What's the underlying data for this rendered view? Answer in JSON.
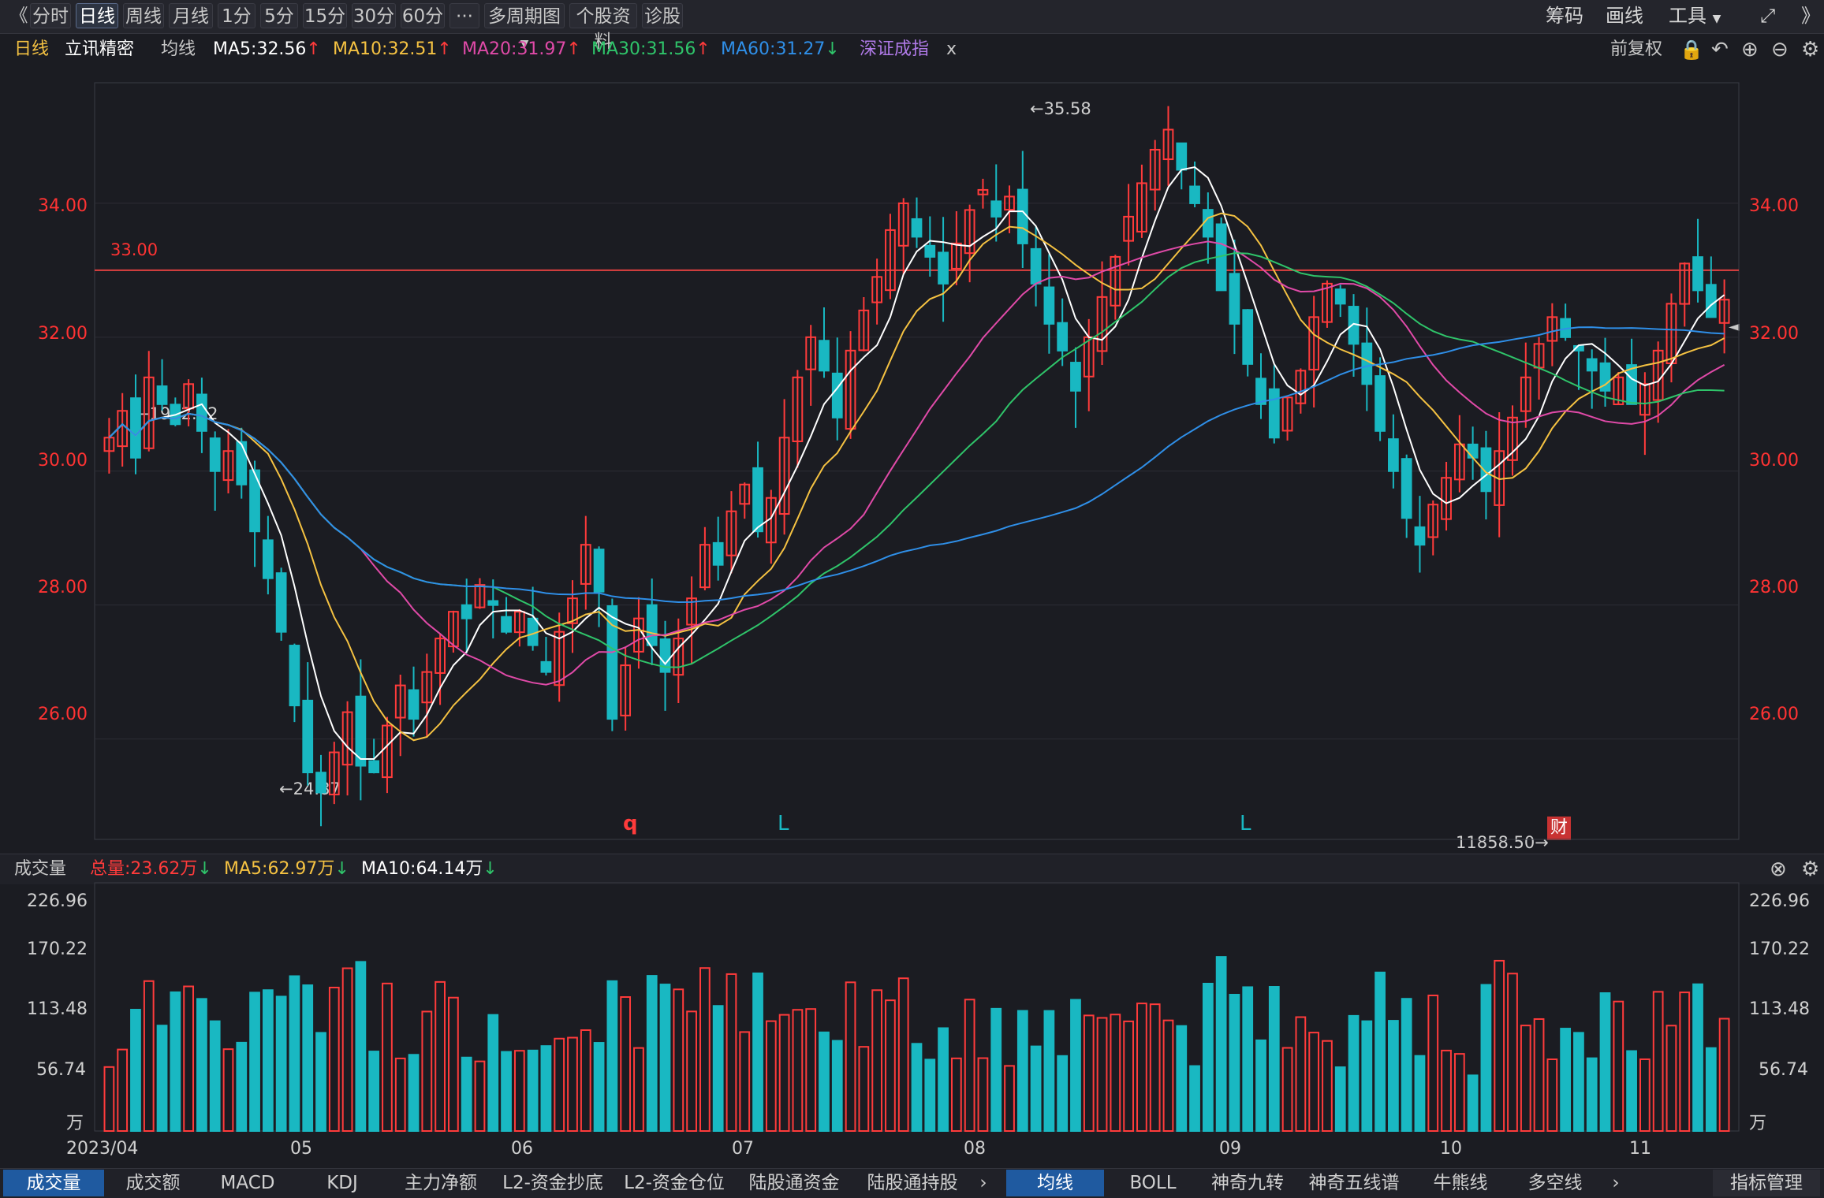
{
  "toolbar": {
    "back": "《",
    "periods": [
      "分时",
      "日线",
      "周线",
      "月线",
      "1分",
      "5分",
      "15分",
      "30分",
      "60分",
      "···",
      "多周期图",
      "个股资料",
      "诊股"
    ],
    "active_period": "日线",
    "right": [
      "筹码",
      "画线",
      "工具"
    ]
  },
  "info_row": {
    "period": "日线",
    "stock": "立讯精密",
    "avg_label": "均线",
    "ma5": "MA5:32.56",
    "ma10": "MA10:32.51",
    "ma20": "MA20:31.97",
    "ma30": "MA30:31.56",
    "ma60": "MA60:31.27",
    "index_overlay": "深证成指",
    "close_x": "x",
    "restore": "前复权"
  },
  "price_axis": {
    "labels": [
      "34.00",
      "32.00",
      "30.00",
      "28.00",
      "26.00"
    ],
    "hline_label": "33.00"
  },
  "annotations": {
    "high": "←35.58",
    "low": "←24.87",
    "index_high": "←1992.32",
    "index_low": "11858.50→",
    "markers": [
      "q",
      "L",
      "L"
    ],
    "fin_badge": "财"
  },
  "volume_pane": {
    "title": "成交量",
    "total": "总量:23.62万",
    "ma5": "MA5:62.97万",
    "ma10": "MA10:64.14万",
    "labels": [
      "226.96",
      "170.22",
      "113.48",
      "56.74",
      "万"
    ]
  },
  "x_axis": [
    "2023/04",
    "05",
    "06",
    "07",
    "08",
    "09",
    "10",
    "11"
  ],
  "bottom_tabs_left": [
    "成交量",
    "成交额",
    "MACD",
    "KDJ",
    "主力净额",
    "L2-资金抄底",
    "L2-资金仓位",
    "陆股通资金",
    "陆股通持股"
  ],
  "bottom_tabs_right": [
    "均线",
    "BOLL",
    "神奇九转",
    "神奇五线谱",
    "牛熊线",
    "多空线",
    "指标管理"
  ],
  "colors": {
    "up": "#ff3b3b",
    "down": "#19b8c2",
    "ma5": "#ffffff",
    "ma10": "#f5c242",
    "ma20": "#e04aa8",
    "ma30": "#2fc46a",
    "ma60": "#2f8fe8",
    "index": "#b07ae8"
  },
  "chart_data": {
    "type": "candlestick",
    "title": "立讯精密 日线",
    "ylim": [
      24.5,
      35.8
    ],
    "support_line": 33.0,
    "high": 35.58,
    "low": 24.87,
    "x_ticks": [
      "2023/04",
      "05",
      "06",
      "07",
      "08",
      "09",
      "10",
      "11"
    ],
    "series": [
      {
        "name": "MA5",
        "value": 32.56
      },
      {
        "name": "MA10",
        "value": 32.51
      },
      {
        "name": "MA20",
        "value": 31.97
      },
      {
        "name": "MA30",
        "value": 31.56
      },
      {
        "name": "MA60",
        "value": 31.27
      }
    ],
    "closes": [
      30.5,
      30.9,
      30.2,
      31.4,
      31.0,
      30.7,
      31.3,
      30.6,
      30.0,
      30.3,
      29.8,
      29.1,
      28.4,
      27.6,
      26.5,
      25.5,
      25.2,
      25.8,
      26.4,
      25.6,
      25.5,
      26.2,
      26.8,
      26.3,
      27.0,
      27.5,
      27.9,
      27.8,
      28.3,
      28.0,
      27.6,
      27.9,
      27.4,
      27.0,
      27.6,
      28.1,
      28.9,
      28.2,
      26.3,
      27.1,
      27.8,
      27.4,
      27.0,
      27.5,
      28.1,
      28.9,
      28.6,
      29.4,
      29.8,
      29.1,
      29.6,
      30.5,
      31.4,
      32.0,
      31.5,
      30.8,
      31.8,
      32.4,
      32.9,
      33.6,
      34.0,
      33.5,
      33.2,
      32.8,
      33.4,
      33.9,
      34.2,
      33.8,
      34.1,
      33.4,
      32.8,
      32.2,
      31.8,
      31.2,
      32.0,
      32.6,
      33.2,
      33.8,
      34.3,
      34.8,
      35.1,
      34.5,
      34.0,
      33.5,
      32.7,
      32.2,
      31.6,
      31.0,
      30.5,
      31.1,
      31.5,
      32.3,
      32.8,
      32.5,
      31.9,
      31.3,
      30.6,
      30.0,
      29.3,
      28.9,
      29.5,
      29.9,
      30.4,
      30.2,
      29.7,
      30.3,
      30.8,
      31.4,
      31.9,
      32.3,
      32.0,
      31.8,
      31.5,
      31.2,
      31.4,
      31.0,
      31.3,
      31.8,
      32.5,
      33.1,
      32.7,
      32.3,
      32.56
    ]
  }
}
